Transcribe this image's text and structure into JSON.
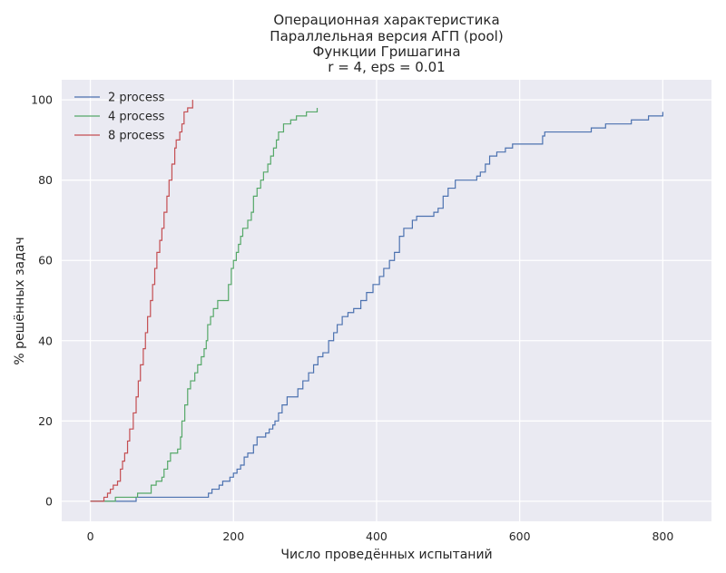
{
  "chart_data": {
    "type": "line",
    "title": [
      "Операционная характеристика",
      "Параллельная версия АГП (pool)",
      "Функции Гришагина",
      "r = 4, eps = 0.01"
    ],
    "xlabel": "Число проведённых испытаний",
    "ylabel": "% решённых задач",
    "xlim": [
      -40,
      868
    ],
    "ylim": [
      -5,
      105
    ],
    "xticks": [
      0,
      200,
      400,
      600,
      800
    ],
    "yticks": [
      0,
      20,
      40,
      60,
      80,
      100
    ],
    "grid": true,
    "step": true,
    "legend_position": "top-left",
    "series": [
      {
        "name": "2 process",
        "color": "#4c72b0",
        "points": [
          [
            0,
            0
          ],
          [
            62,
            0
          ],
          [
            64,
            1
          ],
          [
            160,
            1
          ],
          [
            165,
            2
          ],
          [
            170,
            3
          ],
          [
            180,
            4
          ],
          [
            185,
            5
          ],
          [
            195,
            6
          ],
          [
            200,
            7
          ],
          [
            205,
            8
          ],
          [
            210,
            9
          ],
          [
            215,
            11
          ],
          [
            220,
            12
          ],
          [
            228,
            14
          ],
          [
            233,
            16
          ],
          [
            245,
            17
          ],
          [
            250,
            18
          ],
          [
            255,
            19
          ],
          [
            258,
            20
          ],
          [
            263,
            22
          ],
          [
            268,
            24
          ],
          [
            275,
            26
          ],
          [
            290,
            28
          ],
          [
            297,
            30
          ],
          [
            305,
            32
          ],
          [
            312,
            34
          ],
          [
            318,
            36
          ],
          [
            325,
            37
          ],
          [
            333,
            40
          ],
          [
            340,
            42
          ],
          [
            345,
            44
          ],
          [
            352,
            46
          ],
          [
            360,
            47
          ],
          [
            368,
            48
          ],
          [
            378,
            50
          ],
          [
            386,
            52
          ],
          [
            395,
            54
          ],
          [
            404,
            56
          ],
          [
            410,
            58
          ],
          [
            418,
            60
          ],
          [
            425,
            62
          ],
          [
            432,
            66
          ],
          [
            438,
            68
          ],
          [
            450,
            70
          ],
          [
            456,
            71
          ],
          [
            480,
            72
          ],
          [
            486,
            73
          ],
          [
            493,
            76
          ],
          [
            500,
            78
          ],
          [
            510,
            80
          ],
          [
            540,
            81
          ],
          [
            545,
            82
          ],
          [
            552,
            84
          ],
          [
            558,
            86
          ],
          [
            568,
            87
          ],
          [
            580,
            88
          ],
          [
            590,
            89
          ],
          [
            628,
            89
          ],
          [
            632,
            91
          ],
          [
            635,
            92
          ],
          [
            700,
            93
          ],
          [
            720,
            94
          ],
          [
            740,
            94
          ],
          [
            756,
            95
          ],
          [
            780,
            96
          ],
          [
            798,
            96
          ],
          [
            800,
            97
          ]
        ]
      },
      {
        "name": "4 process",
        "color": "#55a868",
        "points": [
          [
            0,
            0
          ],
          [
            33,
            0
          ],
          [
            35,
            1
          ],
          [
            62,
            1
          ],
          [
            66,
            2
          ],
          [
            80,
            2
          ],
          [
            85,
            4
          ],
          [
            92,
            5
          ],
          [
            100,
            6
          ],
          [
            103,
            8
          ],
          [
            108,
            10
          ],
          [
            112,
            12
          ],
          [
            122,
            13
          ],
          [
            126,
            16
          ],
          [
            128,
            20
          ],
          [
            132,
            24
          ],
          [
            136,
            28
          ],
          [
            140,
            30
          ],
          [
            146,
            32
          ],
          [
            150,
            34
          ],
          [
            155,
            36
          ],
          [
            159,
            38
          ],
          [
            162,
            40
          ],
          [
            164,
            44
          ],
          [
            168,
            46
          ],
          [
            172,
            48
          ],
          [
            178,
            50
          ],
          [
            190,
            50
          ],
          [
            193,
            54
          ],
          [
            197,
            58
          ],
          [
            200,
            60
          ],
          [
            204,
            62
          ],
          [
            207,
            64
          ],
          [
            210,
            66
          ],
          [
            213,
            68
          ],
          [
            220,
            70
          ],
          [
            225,
            72
          ],
          [
            228,
            76
          ],
          [
            233,
            78
          ],
          [
            238,
            80
          ],
          [
            242,
            82
          ],
          [
            248,
            84
          ],
          [
            252,
            86
          ],
          [
            256,
            88
          ],
          [
            260,
            90
          ],
          [
            263,
            92
          ],
          [
            270,
            94
          ],
          [
            280,
            95
          ],
          [
            288,
            96
          ],
          [
            302,
            97
          ],
          [
            315,
            97
          ],
          [
            317,
            98
          ]
        ]
      },
      {
        "name": "8 process",
        "color": "#c44e52",
        "points": [
          [
            0,
            0
          ],
          [
            17,
            0
          ],
          [
            19,
            1
          ],
          [
            24,
            2
          ],
          [
            28,
            3
          ],
          [
            32,
            4
          ],
          [
            38,
            5
          ],
          [
            42,
            8
          ],
          [
            45,
            10
          ],
          [
            48,
            12
          ],
          [
            52,
            15
          ],
          [
            55,
            18
          ],
          [
            60,
            22
          ],
          [
            64,
            26
          ],
          [
            67,
            30
          ],
          [
            70,
            34
          ],
          [
            74,
            38
          ],
          [
            77,
            42
          ],
          [
            80,
            46
          ],
          [
            84,
            50
          ],
          [
            87,
            54
          ],
          [
            90,
            58
          ],
          [
            93,
            62
          ],
          [
            97,
            65
          ],
          [
            100,
            68
          ],
          [
            103,
            72
          ],
          [
            107,
            76
          ],
          [
            110,
            80
          ],
          [
            114,
            84
          ],
          [
            118,
            88
          ],
          [
            120,
            90
          ],
          [
            125,
            92
          ],
          [
            128,
            94
          ],
          [
            131,
            97
          ],
          [
            136,
            98
          ],
          [
            140,
            98
          ],
          [
            143,
            100
          ]
        ]
      }
    ]
  }
}
